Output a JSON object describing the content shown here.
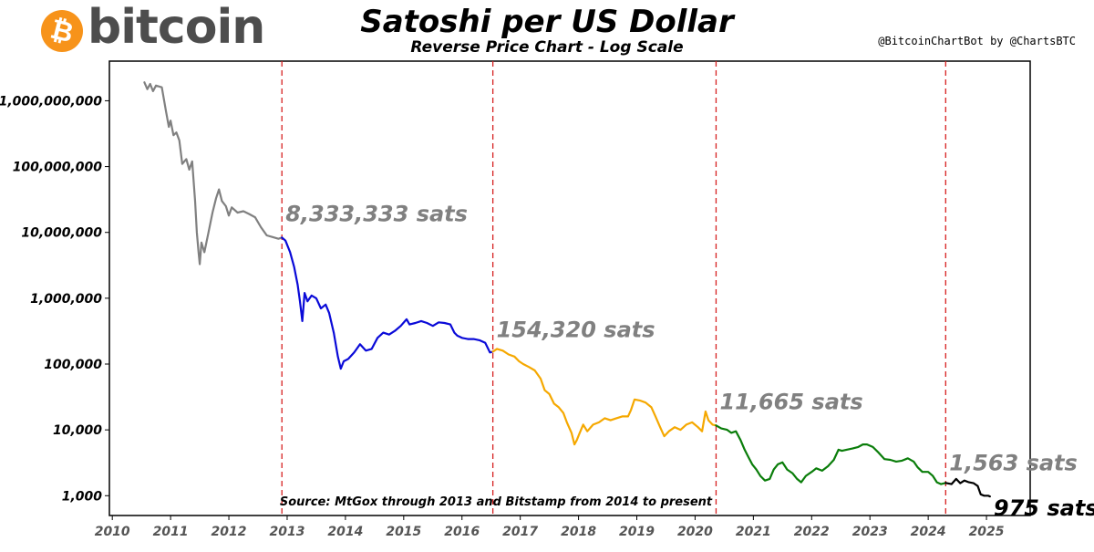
{
  "logo": {
    "word": "bitcoin",
    "coin_symbol": "₿",
    "coin_color": "#f7931a"
  },
  "credit": "@BitcoinChartBot by @ChartsBTC",
  "chart_data": {
    "type": "line",
    "title": "Satoshi per US Dollar",
    "subtitle": "Reverse Price Chart - Log Scale",
    "scale": "log",
    "xlim": [
      2009.95,
      2025.75
    ],
    "ylim": [
      500,
      4000000000
    ],
    "xticks": [
      2010,
      2011,
      2012,
      2013,
      2014,
      2015,
      2016,
      2017,
      2018,
      2019,
      2020,
      2021,
      2022,
      2023,
      2024,
      2025
    ],
    "yticks": [
      {
        "value": 1000,
        "label": "1,000"
      },
      {
        "value": 10000,
        "label": "10,000"
      },
      {
        "value": 100000,
        "label": "100,000"
      },
      {
        "value": 1000000,
        "label": "1,000,000"
      },
      {
        "value": 10000000,
        "label": "10,000,000"
      },
      {
        "value": 100000000,
        "label": "100,000,000"
      },
      {
        "value": 1000000000,
        "label": "1,000,000,000"
      }
    ],
    "halvings": [
      2012.91,
      2016.53,
      2020.36,
      2024.3
    ],
    "series": [
      {
        "name": "pre-halving-1",
        "color": "#808080",
        "points": [
          [
            2010.55,
            1900000000
          ],
          [
            2010.6,
            1500000000
          ],
          [
            2010.65,
            1800000000
          ],
          [
            2010.7,
            1400000000
          ],
          [
            2010.75,
            1700000000
          ],
          [
            2010.85,
            1600000000
          ],
          [
            2010.92,
            700000000
          ],
          [
            2010.97,
            400000000
          ],
          [
            2011.0,
            500000000
          ],
          [
            2011.05,
            300000000
          ],
          [
            2011.1,
            330000000
          ],
          [
            2011.15,
            250000000
          ],
          [
            2011.2,
            110000000
          ],
          [
            2011.27,
            130000000
          ],
          [
            2011.32,
            90000000
          ],
          [
            2011.37,
            120000000
          ],
          [
            2011.42,
            30000000
          ],
          [
            2011.45,
            10000000
          ],
          [
            2011.48,
            5000000
          ],
          [
            2011.5,
            3300000
          ],
          [
            2011.53,
            7000000
          ],
          [
            2011.58,
            5000000
          ],
          [
            2011.65,
            10000000
          ],
          [
            2011.72,
            20000000
          ],
          [
            2011.78,
            33000000
          ],
          [
            2011.83,
            45000000
          ],
          [
            2011.88,
            30000000
          ],
          [
            2011.95,
            25000000
          ],
          [
            2012.0,
            18000000
          ],
          [
            2012.05,
            24000000
          ],
          [
            2012.15,
            20000000
          ],
          [
            2012.25,
            21000000
          ],
          [
            2012.35,
            19000000
          ],
          [
            2012.45,
            17000000
          ],
          [
            2012.55,
            12000000
          ],
          [
            2012.65,
            9000000
          ],
          [
            2012.75,
            8500000
          ],
          [
            2012.85,
            8000000
          ],
          [
            2012.91,
            8333333
          ]
        ]
      },
      {
        "name": "halving-1-to-2",
        "color": "#0a0ad8",
        "points": [
          [
            2012.91,
            8333333
          ],
          [
            2012.97,
            7500000
          ],
          [
            2013.05,
            5000000
          ],
          [
            2013.12,
            3000000
          ],
          [
            2013.18,
            1600000
          ],
          [
            2013.22,
            900000
          ],
          [
            2013.26,
            450000
          ],
          [
            2013.3,
            1200000
          ],
          [
            2013.35,
            900000
          ],
          [
            2013.42,
            1100000
          ],
          [
            2013.5,
            1000000
          ],
          [
            2013.58,
            700000
          ],
          [
            2013.66,
            800000
          ],
          [
            2013.72,
            600000
          ],
          [
            2013.8,
            300000
          ],
          [
            2013.87,
            130000
          ],
          [
            2013.92,
            85000
          ],
          [
            2013.97,
            110000
          ],
          [
            2014.05,
            120000
          ],
          [
            2014.15,
            150000
          ],
          [
            2014.25,
            200000
          ],
          [
            2014.35,
            160000
          ],
          [
            2014.45,
            170000
          ],
          [
            2014.55,
            250000
          ],
          [
            2014.65,
            300000
          ],
          [
            2014.75,
            280000
          ],
          [
            2014.85,
            320000
          ],
          [
            2014.95,
            380000
          ],
          [
            2015.05,
            480000
          ],
          [
            2015.1,
            400000
          ],
          [
            2015.2,
            420000
          ],
          [
            2015.3,
            450000
          ],
          [
            2015.4,
            420000
          ],
          [
            2015.5,
            380000
          ],
          [
            2015.6,
            430000
          ],
          [
            2015.7,
            420000
          ],
          [
            2015.8,
            400000
          ],
          [
            2015.87,
            300000
          ],
          [
            2015.92,
            270000
          ],
          [
            2016.0,
            250000
          ],
          [
            2016.1,
            240000
          ],
          [
            2016.2,
            240000
          ],
          [
            2016.3,
            230000
          ],
          [
            2016.4,
            210000
          ],
          [
            2016.48,
            150000
          ],
          [
            2016.53,
            154320
          ]
        ]
      },
      {
        "name": "halving-2-to-3",
        "color": "#f5a800",
        "points": [
          [
            2016.53,
            154320
          ],
          [
            2016.6,
            170000
          ],
          [
            2016.7,
            160000
          ],
          [
            2016.8,
            140000
          ],
          [
            2016.9,
            130000
          ],
          [
            2016.98,
            110000
          ],
          [
            2017.05,
            100000
          ],
          [
            2017.15,
            90000
          ],
          [
            2017.25,
            80000
          ],
          [
            2017.35,
            60000
          ],
          [
            2017.42,
            40000
          ],
          [
            2017.5,
            35000
          ],
          [
            2017.58,
            25000
          ],
          [
            2017.66,
            22000
          ],
          [
            2017.74,
            18000
          ],
          [
            2017.8,
            13000
          ],
          [
            2017.88,
            9000
          ],
          [
            2017.93,
            6000
          ],
          [
            2017.97,
            7000
          ],
          [
            2018.02,
            9000
          ],
          [
            2018.08,
            12000
          ],
          [
            2018.15,
            9500
          ],
          [
            2018.25,
            12000
          ],
          [
            2018.35,
            13000
          ],
          [
            2018.45,
            15000
          ],
          [
            2018.55,
            14000
          ],
          [
            2018.65,
            15000
          ],
          [
            2018.75,
            16000
          ],
          [
            2018.85,
            16000
          ],
          [
            2018.9,
            20000
          ],
          [
            2018.96,
            29000
          ],
          [
            2019.05,
            28000
          ],
          [
            2019.15,
            26000
          ],
          [
            2019.25,
            22000
          ],
          [
            2019.32,
            16000
          ],
          [
            2019.4,
            11000
          ],
          [
            2019.47,
            8000
          ],
          [
            2019.55,
            9500
          ],
          [
            2019.65,
            11000
          ],
          [
            2019.75,
            10000
          ],
          [
            2019.85,
            12000
          ],
          [
            2019.95,
            13000
          ],
          [
            2020.05,
            11000
          ],
          [
            2020.12,
            9500
          ],
          [
            2020.18,
            19000
          ],
          [
            2020.23,
            14000
          ],
          [
            2020.3,
            12000
          ],
          [
            2020.36,
            11665
          ]
        ]
      },
      {
        "name": "halving-3-to-4",
        "color": "#0a7d0a",
        "points": [
          [
            2020.36,
            11665
          ],
          [
            2020.45,
            10500
          ],
          [
            2020.55,
            10000
          ],
          [
            2020.62,
            9000
          ],
          [
            2020.7,
            9500
          ],
          [
            2020.78,
            7000
          ],
          [
            2020.85,
            5000
          ],
          [
            2020.92,
            3800
          ],
          [
            2020.98,
            3000
          ],
          [
            2021.05,
            2500
          ],
          [
            2021.12,
            2000
          ],
          [
            2021.2,
            1700
          ],
          [
            2021.28,
            1800
          ],
          [
            2021.35,
            2500
          ],
          [
            2021.42,
            3000
          ],
          [
            2021.5,
            3200
          ],
          [
            2021.58,
            2500
          ],
          [
            2021.67,
            2200
          ],
          [
            2021.75,
            1800
          ],
          [
            2021.82,
            1600
          ],
          [
            2021.9,
            2000
          ],
          [
            2022.0,
            2300
          ],
          [
            2022.08,
            2600
          ],
          [
            2022.18,
            2400
          ],
          [
            2022.28,
            2800
          ],
          [
            2022.38,
            3500
          ],
          [
            2022.46,
            5000
          ],
          [
            2022.52,
            4800
          ],
          [
            2022.6,
            5000
          ],
          [
            2022.7,
            5200
          ],
          [
            2022.8,
            5500
          ],
          [
            2022.88,
            6000
          ],
          [
            2022.95,
            6000
          ],
          [
            2023.05,
            5500
          ],
          [
            2023.15,
            4500
          ],
          [
            2023.25,
            3600
          ],
          [
            2023.35,
            3500
          ],
          [
            2023.45,
            3300
          ],
          [
            2023.55,
            3400
          ],
          [
            2023.65,
            3700
          ],
          [
            2023.75,
            3300
          ],
          [
            2023.82,
            2700
          ],
          [
            2023.9,
            2300
          ],
          [
            2024.0,
            2300
          ],
          [
            2024.08,
            2000
          ],
          [
            2024.15,
            1600
          ],
          [
            2024.22,
            1500
          ],
          [
            2024.3,
            1563
          ]
        ]
      },
      {
        "name": "post-halving-4",
        "color": "#000000",
        "points": [
          [
            2024.3,
            1563
          ],
          [
            2024.4,
            1500
          ],
          [
            2024.48,
            1800
          ],
          [
            2024.55,
            1550
          ],
          [
            2024.62,
            1700
          ],
          [
            2024.7,
            1600
          ],
          [
            2024.78,
            1550
          ],
          [
            2024.85,
            1400
          ],
          [
            2024.9,
            1050
          ],
          [
            2024.96,
            1000
          ],
          [
            2025.03,
            1000
          ],
          [
            2025.06,
            975
          ]
        ]
      }
    ],
    "annotations": [
      {
        "text": "8,333,333 sats",
        "x": 2012.91,
        "y": 8333333,
        "color": "#808080"
      },
      {
        "text": "154,320 sats",
        "x": 2016.53,
        "y": 154320,
        "color": "#808080"
      },
      {
        "text": "11,665 sats",
        "x": 2020.36,
        "y": 11665,
        "color": "#808080"
      },
      {
        "text": "1,563 sats",
        "x": 2024.3,
        "y": 1563,
        "color": "#808080"
      },
      {
        "text": "975 sats",
        "x": 2025.06,
        "y": 975,
        "color": "#000000"
      }
    ],
    "source_note": "Source: MtGox through 2013 and Bitstamp from 2014 to present"
  }
}
